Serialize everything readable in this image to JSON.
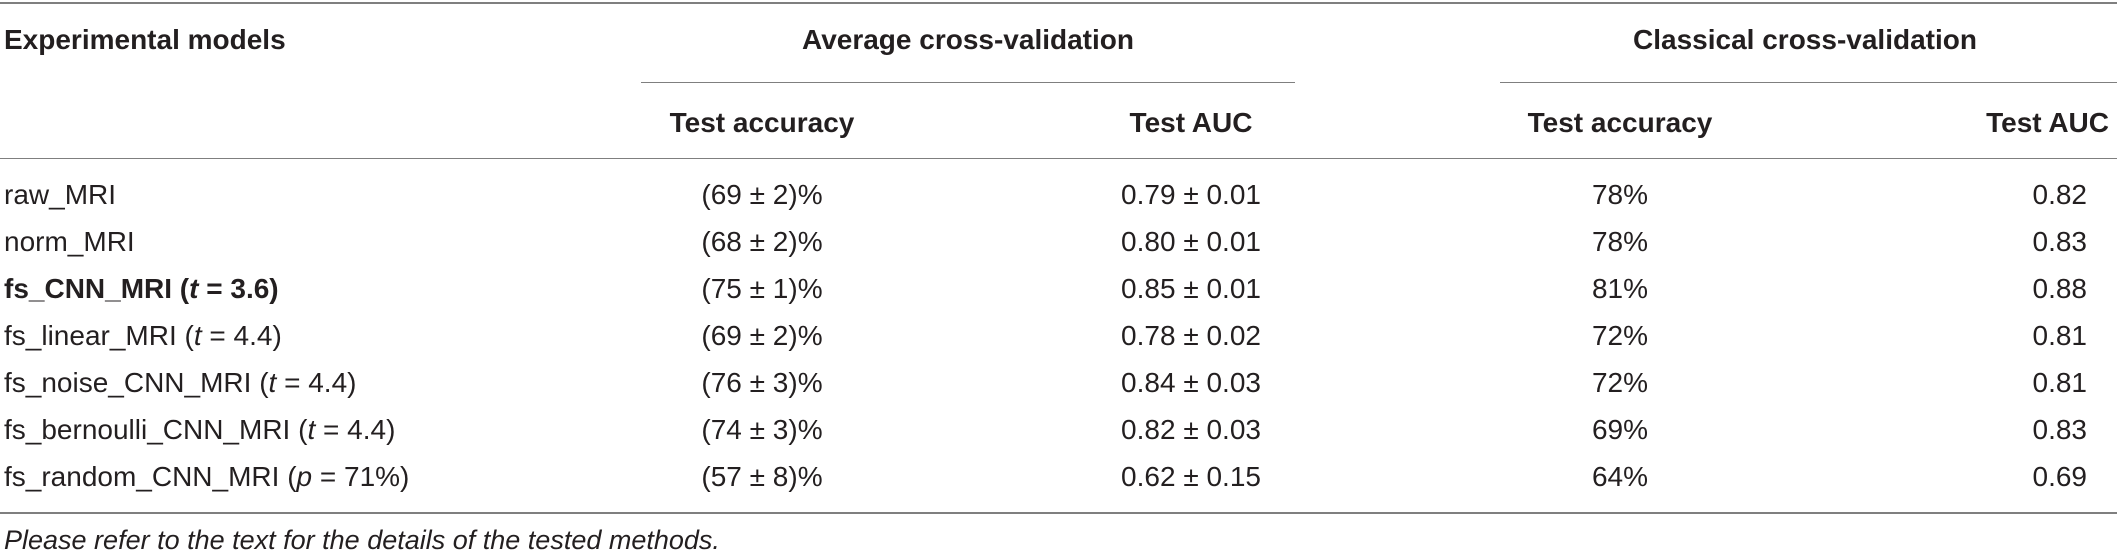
{
  "table": {
    "header": {
      "model_col": "Experimental models",
      "group_avg": "Average cross-validation",
      "group_cls": "Classical cross-validation",
      "avg_acc": "Test accuracy",
      "avg_auc": "Test AUC",
      "cls_acc": "Test accuracy",
      "cls_auc": "Test AUC"
    },
    "rows": [
      {
        "label": "raw_MRI",
        "param_pre": "",
        "param_var": "",
        "param_post": "",
        "bold": false,
        "avg_acc": "(69 ± 2)%",
        "avg_auc": "0.79 ± 0.01",
        "cls_acc": "78%",
        "cls_auc": "0.82"
      },
      {
        "label": "norm_MRI",
        "param_pre": "",
        "param_var": "",
        "param_post": "",
        "bold": false,
        "avg_acc": "(68 ± 2)%",
        "avg_auc": "0.80 ± 0.01",
        "cls_acc": "78%",
        "cls_auc": "0.83"
      },
      {
        "label": "fs_CNN_MRI",
        "param_pre": " (",
        "param_var": "t",
        "param_post": " = 3.6)",
        "bold": true,
        "avg_acc": "(75 ± 1)%",
        "avg_auc": "0.85 ± 0.01",
        "cls_acc": "81%",
        "cls_auc": "0.88"
      },
      {
        "label": "fs_linear_MRI",
        "param_pre": " (",
        "param_var": "t",
        "param_post": " = 4.4)",
        "bold": false,
        "avg_acc": "(69 ± 2)%",
        "avg_auc": "0.78 ± 0.02",
        "cls_acc": "72%",
        "cls_auc": "0.81"
      },
      {
        "label": "fs_noise_CNN_MRI",
        "param_pre": " (",
        "param_var": "t",
        "param_post": " = 4.4)",
        "bold": false,
        "avg_acc": "(76 ± 3)%",
        "avg_auc": "0.84 ± 0.03",
        "cls_acc": "72%",
        "cls_auc": "0.81"
      },
      {
        "label": "fs_bernoulli_CNN_MRI",
        "param_pre": " (",
        "param_var": "t",
        "param_post": " = 4.4)",
        "bold": false,
        "avg_acc": "(74 ± 3)%",
        "avg_auc": "0.82 ± 0.03",
        "cls_acc": "69%",
        "cls_auc": "0.83"
      },
      {
        "label": "fs_random_CNN_MRI",
        "param_pre": " (",
        "param_var": "p",
        "param_post": " = 71%)",
        "bold": false,
        "avg_acc": "(57 ± 8)%",
        "avg_auc": "0.62 ± 0.15",
        "cls_acc": "64%",
        "cls_auc": "0.69"
      }
    ]
  },
  "footnote": "Please refer to the text for the details of the tested methods."
}
